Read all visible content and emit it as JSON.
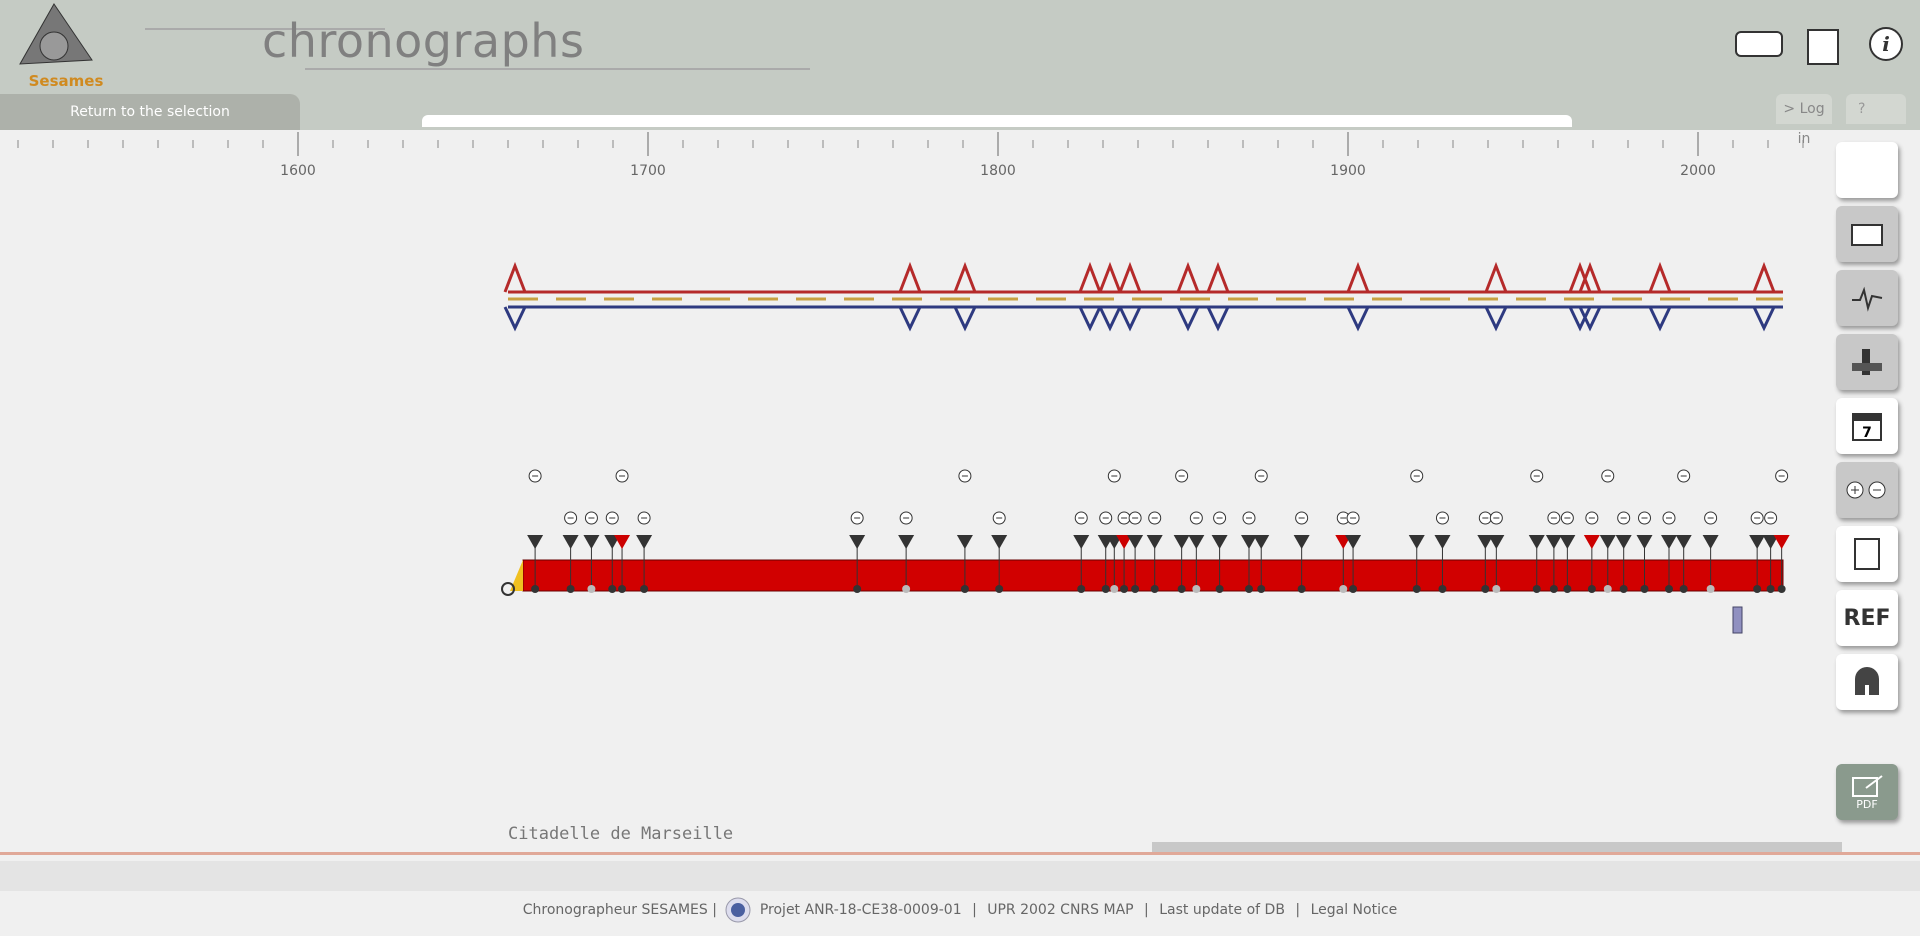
{
  "header": {
    "logo_text": "Sesames",
    "title": "chronographs",
    "return_link": "Return to the selection",
    "login": "> Log in",
    "help": "?"
  },
  "timeline": {
    "axis_labels": [
      "1600",
      "1700",
      "1800",
      "1900",
      "2000"
    ],
    "site_name": "Citadelle de Marseille"
  },
  "sidebar": {
    "ref_button": "REF",
    "pdf_label": "PDF"
  },
  "footer": {
    "app": "Chronographeur SESAMES |",
    "project": "Projet ANR-18-CE38-0009-01",
    "sep1": "|",
    "lab": "UPR 2002 CNRS MAP",
    "sep2": "|",
    "update": "Last update of DB",
    "sep3": "|",
    "legal": "Legal Notice"
  }
}
